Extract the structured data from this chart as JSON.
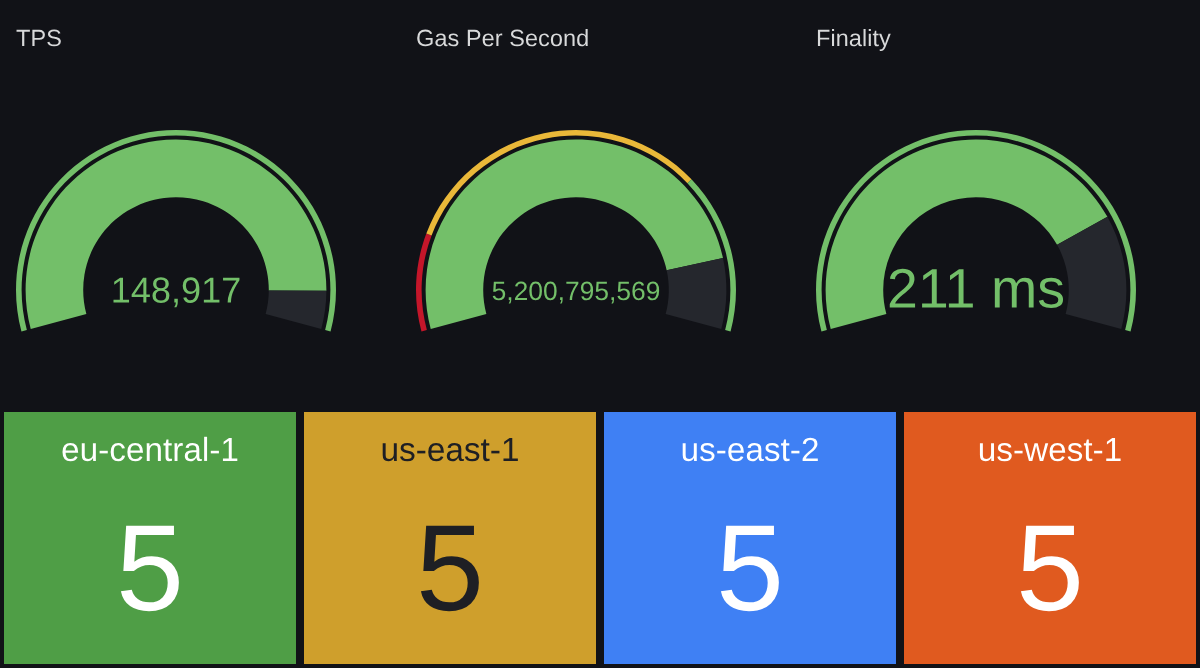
{
  "chart_data": [
    {
      "type": "donut",
      "title": "TPS",
      "categories": [
        null,
        null
      ],
      "annotations": [
        "148,917"
      ],
      "series": [
        {
          "values": [
            93,
            7
          ],
          "colors": [
            "#73bf69",
            "#25272d"
          ]
        },
        {
          "values": [
            100,
            null
          ],
          "colors": [
            "#73bf69",
            "#73bf69"
          ]
        }
      ]
    },
    {
      "type": "donut",
      "title": "Gas Per Second",
      "categories": [
        null,
        null,
        null
      ],
      "annotations": [
        "5,200,795,569"
      ],
      "series": [
        {
          "values": [
            87,
            13,
            null
          ],
          "colors": [
            "#73bf69",
            "#25272d",
            "#25272d"
          ]
        },
        {
          "values": [
            17,
            55,
            28
          ],
          "colors": [
            "#c4162a",
            "#eab839",
            "#73bf69"
          ]
        }
      ]
    },
    {
      "type": "donut",
      "title": "Finality",
      "categories": [
        null,
        null
      ],
      "annotations": [
        "211 ms"
      ],
      "series": [
        {
          "values": [
            79,
            21
          ],
          "colors": [
            "#73bf69",
            "#25272d"
          ]
        },
        {
          "values": [
            100,
            null
          ],
          "colors": [
            "#73bf69",
            "#73bf69"
          ]
        }
      ]
    },
    {
      "type": "other",
      "title": "eu-central-1",
      "values": [
        5
      ],
      "data_labels": true,
      "color": "#4f9e46"
    },
    {
      "type": "other",
      "title": "us-east-1",
      "values": [
        5
      ],
      "data_labels": true,
      "color": "#cf9f2c"
    },
    {
      "type": "other",
      "title": "us-east-2",
      "values": [
        5
      ],
      "data_labels": true,
      "color": "#3f80f4"
    },
    {
      "type": "other",
      "title": "us-west-1",
      "values": [
        5
      ],
      "data_labels": true,
      "color": "#e05a1f"
    }
  ]
}
